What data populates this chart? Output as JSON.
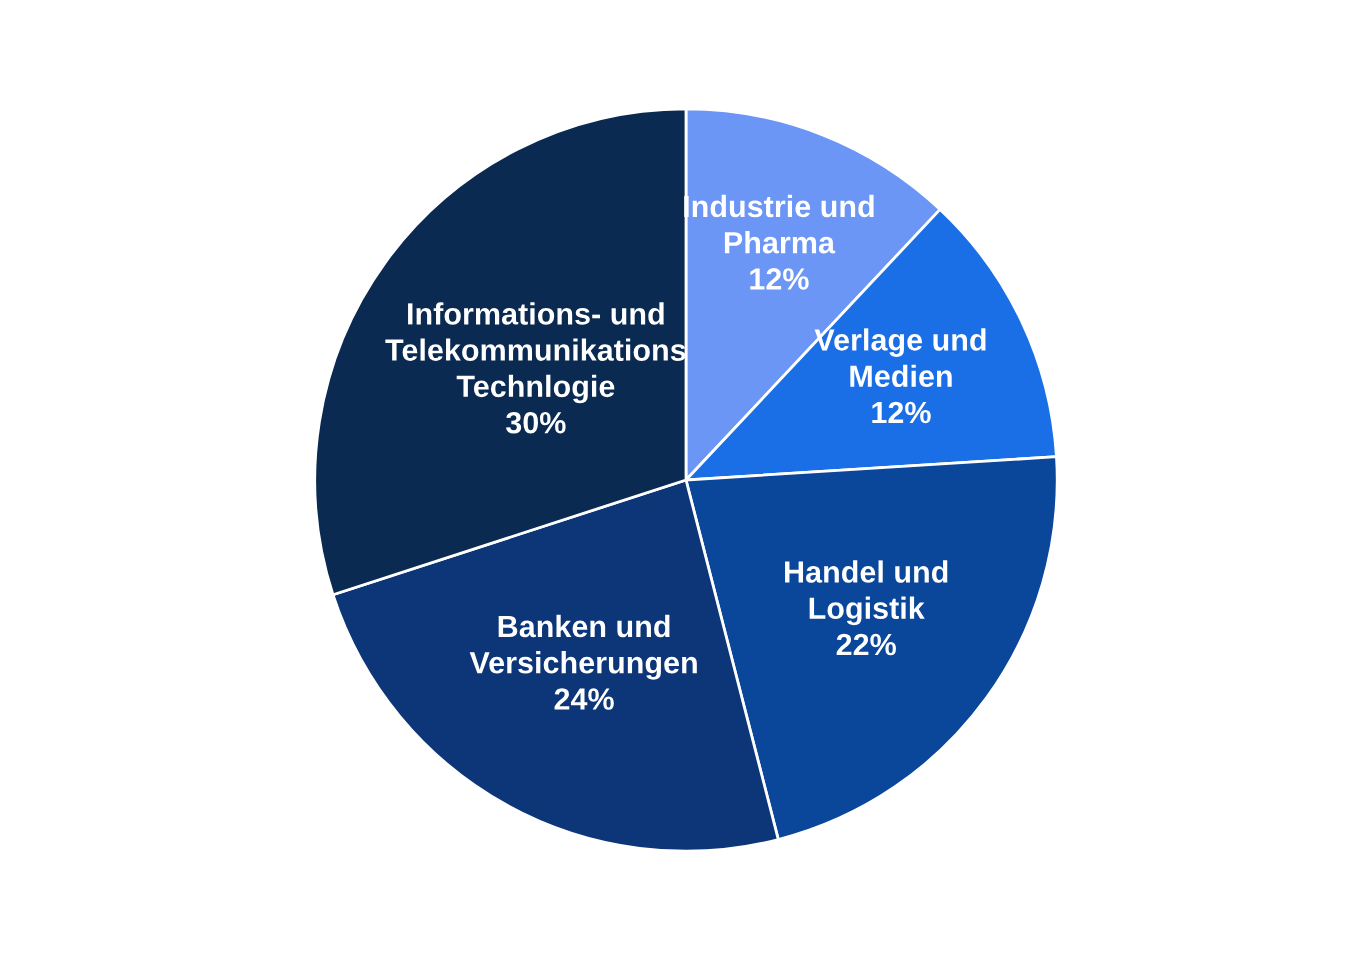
{
  "chart_data": {
    "type": "pie",
    "categories": [
      "Industrie und\nPharma",
      "Verlage und\nMedien",
      "Handel und\nLogistik",
      "Banken und\nVersicherungen",
      "Informations- und\nTelekommunikations\nTechnlogie"
    ],
    "values": [
      12,
      12,
      22,
      24,
      30
    ],
    "value_labels": [
      "12%",
      "12%",
      "22%",
      "24%",
      "30%"
    ],
    "colors": [
      "#6b96f5",
      "#1a6ee6",
      "#0a4699",
      "#0d3678",
      "#0b2a52"
    ]
  }
}
